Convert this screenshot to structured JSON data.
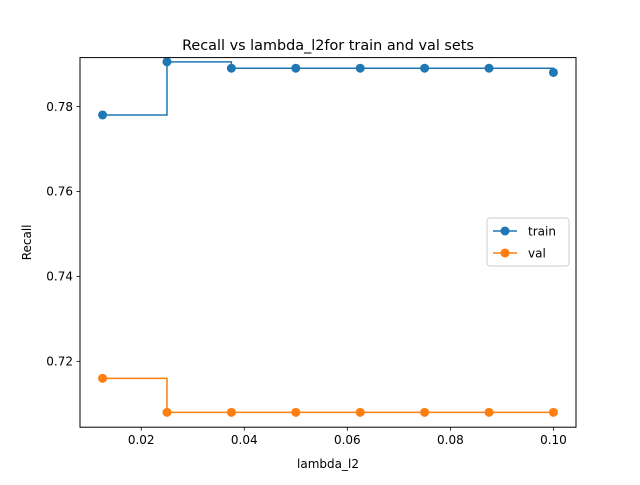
{
  "chart_data": {
    "type": "line",
    "title": "Recall vs lambda_l2for train and val sets",
    "xlabel": "lambda_l2",
    "ylabel": "Recall",
    "xlim": [
      0.00812,
      0.10438
    ],
    "ylim": [
      0.7045,
      0.7915
    ],
    "xticks": [
      0.02,
      0.04,
      0.06,
      0.08,
      0.1
    ],
    "xtick_labels": [
      "0.02",
      "0.04",
      "0.06",
      "0.08",
      "0.10"
    ],
    "yticks": [
      0.72,
      0.74,
      0.76,
      0.78
    ],
    "ytick_labels": [
      "0.72",
      "0.74",
      "0.76",
      "0.78"
    ],
    "grid": false,
    "legend_position": "center-right",
    "step": "post",
    "x": [
      0.0125,
      0.025,
      0.0375,
      0.05,
      0.0625,
      0.075,
      0.0875,
      0.1
    ],
    "series": [
      {
        "name": "train",
        "color": "#1f77b4",
        "marker": "circle",
        "values": [
          0.778,
          0.7905,
          0.789,
          0.789,
          0.789,
          0.789,
          0.789,
          0.788
        ]
      },
      {
        "name": "val",
        "color": "#ff7f0e",
        "marker": "circle",
        "values": [
          0.716,
          0.708,
          0.708,
          0.708,
          0.708,
          0.708,
          0.708,
          0.708
        ]
      }
    ]
  }
}
